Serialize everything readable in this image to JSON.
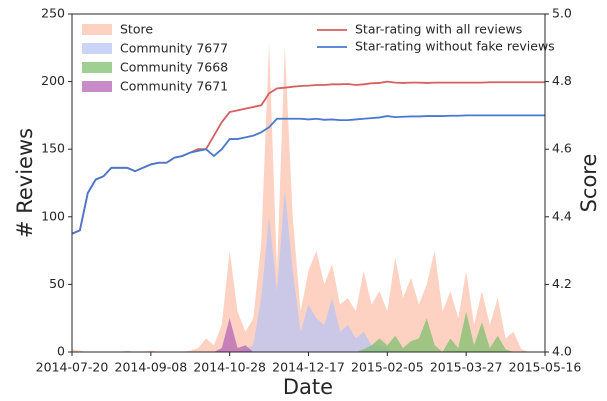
{
  "chart_data": {
    "type": "area",
    "x_label": "Date",
    "y_label": "# Reviews",
    "y2_label": "Score",
    "x": [
      "2014-07-20",
      "2014-07-25",
      "2014-07-30",
      "2014-08-04",
      "2014-08-09",
      "2014-08-14",
      "2014-08-19",
      "2014-08-24",
      "2014-08-29",
      "2014-09-03",
      "2014-09-08",
      "2014-09-13",
      "2014-09-18",
      "2014-09-23",
      "2014-09-28",
      "2014-10-03",
      "2014-10-08",
      "2014-10-13",
      "2014-10-18",
      "2014-10-23",
      "2014-10-28",
      "2014-11-02",
      "2014-11-07",
      "2014-11-12",
      "2014-11-17",
      "2014-11-22",
      "2014-11-27",
      "2014-12-02",
      "2014-12-07",
      "2014-12-12",
      "2014-12-17",
      "2014-12-22",
      "2014-12-27",
      "2015-01-01",
      "2015-01-06",
      "2015-01-11",
      "2015-01-16",
      "2015-01-21",
      "2015-01-26",
      "2015-01-31",
      "2015-02-05",
      "2015-02-10",
      "2015-02-15",
      "2015-02-20",
      "2015-02-25",
      "2015-03-02",
      "2015-03-07",
      "2015-03-12",
      "2015-03-17",
      "2015-03-22",
      "2015-03-27",
      "2015-04-01",
      "2015-04-06",
      "2015-04-11",
      "2015-04-16",
      "2015-04-21",
      "2015-04-26",
      "2015-05-01",
      "2015-05-06",
      "2015-05-11",
      "2015-05-16"
    ],
    "xlim": [
      "2014-07-20",
      "2015-05-16"
    ],
    "xticks": [
      "2014-07-20",
      "2014-09-08",
      "2014-10-28",
      "2014-12-17",
      "2015-02-05",
      "2015-03-27",
      "2015-05-16"
    ],
    "ylim": [
      0,
      250
    ],
    "yticks": [
      0,
      50,
      100,
      150,
      200,
      250
    ],
    "y2lim": [
      4.0,
      5.0
    ],
    "y2ticks": [
      {
        "value": 4.0,
        "label": "4.0"
      },
      4.2,
      4.4,
      4.6,
      4.8,
      {
        "value": 5.0,
        "label": "5.0"
      }
    ],
    "area_legend": "upper left",
    "line_legend": "upper right",
    "series": [
      {
        "name": "Store",
        "type": "area",
        "color": "#fdc3ad",
        "values": [
          2,
          1,
          0,
          0,
          0,
          0,
          0,
          1,
          0,
          0,
          1,
          0,
          0,
          0,
          0,
          1,
          3,
          10,
          5,
          20,
          75,
          30,
          15,
          25,
          80,
          228,
          60,
          225,
          100,
          30,
          60,
          75,
          50,
          65,
          35,
          40,
          30,
          60,
          35,
          45,
          30,
          70,
          40,
          55,
          35,
          50,
          75,
          30,
          45,
          25,
          60,
          20,
          45,
          20,
          40,
          10,
          15,
          2,
          0,
          0,
          0
        ]
      },
      {
        "name": "Community 7677",
        "type": "area",
        "color": "#b9c4f3",
        "values": [
          0,
          0,
          0,
          0,
          0,
          0,
          0,
          0,
          0,
          0,
          0,
          0,
          0,
          0,
          0,
          0,
          0,
          0,
          0,
          0,
          0,
          0,
          2,
          5,
          40,
          100,
          45,
          120,
          60,
          15,
          35,
          25,
          20,
          40,
          15,
          20,
          10,
          15,
          5,
          5,
          3,
          0,
          0,
          0,
          0,
          0,
          0,
          0,
          0,
          0,
          0,
          0,
          0,
          0,
          0,
          0,
          0,
          0,
          0,
          0,
          0
        ]
      },
      {
        "name": "Community 7668",
        "type": "area",
        "color": "#7fbf6f",
        "values": [
          0,
          0,
          0,
          0,
          0,
          0,
          0,
          0,
          0,
          0,
          0,
          0,
          0,
          0,
          0,
          0,
          0,
          0,
          0,
          0,
          0,
          0,
          0,
          0,
          0,
          0,
          0,
          0,
          0,
          0,
          0,
          0,
          0,
          0,
          0,
          0,
          0,
          2,
          5,
          10,
          5,
          12,
          3,
          8,
          10,
          25,
          5,
          0,
          10,
          3,
          30,
          5,
          22,
          3,
          12,
          2,
          0,
          0,
          0,
          0,
          0
        ]
      },
      {
        "name": "Community 7671",
        "type": "area",
        "color": "#b466b6",
        "values": [
          0,
          0,
          0,
          0,
          0,
          0,
          0,
          0,
          0,
          0,
          0,
          0,
          0,
          0,
          0,
          0,
          0,
          0,
          0,
          3,
          25,
          3,
          5,
          0,
          0,
          0,
          0,
          0,
          0,
          0,
          0,
          0,
          0,
          0,
          0,
          0,
          0,
          0,
          0,
          0,
          0,
          0,
          0,
          0,
          0,
          0,
          0,
          0,
          0,
          0,
          0,
          0,
          0,
          0,
          0,
          0,
          0,
          0,
          0,
          0,
          0
        ]
      },
      {
        "name": "Star-rating with all reviews",
        "type": "line",
        "axis": "y2",
        "color": "#d65f5f",
        "values": [
          4.35,
          4.36,
          4.47,
          4.51,
          4.52,
          4.545,
          4.545,
          4.545,
          4.535,
          4.545,
          4.555,
          4.56,
          4.56,
          4.575,
          4.58,
          4.59,
          4.6,
          4.6,
          4.64,
          4.68,
          4.71,
          4.715,
          4.72,
          4.725,
          4.73,
          4.765,
          4.78,
          4.782,
          4.785,
          4.787,
          4.788,
          4.79,
          4.79,
          4.792,
          4.792,
          4.793,
          4.79,
          4.792,
          4.795,
          4.796,
          4.8,
          4.797,
          4.796,
          4.797,
          4.797,
          4.796,
          4.797,
          4.797,
          4.797,
          4.797,
          4.797,
          4.797,
          4.797,
          4.798,
          4.798,
          4.798,
          4.798,
          4.798,
          4.798,
          4.798,
          4.798
        ]
      },
      {
        "name": "Star-rating without fake reviews",
        "type": "line",
        "axis": "y2",
        "color": "#4878cf",
        "values": [
          4.35,
          4.36,
          4.47,
          4.51,
          4.52,
          4.545,
          4.545,
          4.545,
          4.535,
          4.545,
          4.555,
          4.56,
          4.56,
          4.575,
          4.58,
          4.59,
          4.595,
          4.6,
          4.58,
          4.6,
          4.63,
          4.63,
          4.635,
          4.64,
          4.65,
          4.665,
          4.69,
          4.69,
          4.69,
          4.69,
          4.688,
          4.69,
          4.687,
          4.688,
          4.686,
          4.686,
          4.688,
          4.69,
          4.692,
          4.694,
          4.698,
          4.695,
          4.696,
          4.697,
          4.697,
          4.698,
          4.698,
          4.698,
          4.699,
          4.699,
          4.7,
          4.7,
          4.7,
          4.7,
          4.7,
          4.7,
          4.7,
          4.7,
          4.7,
          4.7,
          4.7
        ]
      }
    ]
  }
}
